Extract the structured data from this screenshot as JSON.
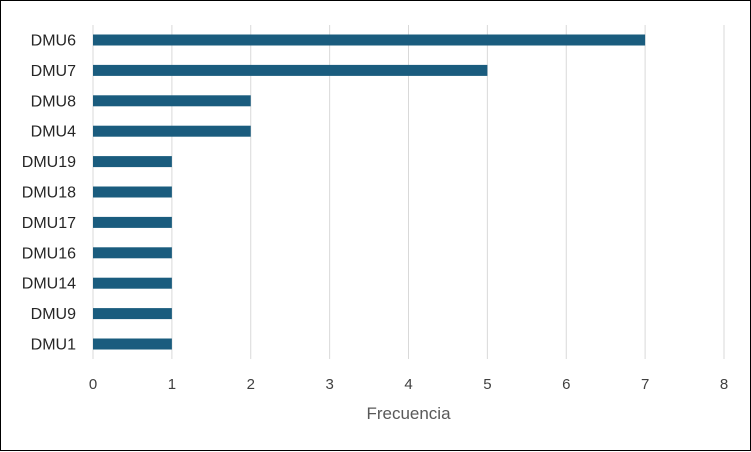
{
  "chart_data": {
    "type": "bar",
    "orientation": "horizontal",
    "categories": [
      "DMU6",
      "DMU7",
      "DMU8",
      "DMU4",
      "DMU19",
      "DMU18",
      "DMU17",
      "DMU16",
      "DMU14",
      "DMU9",
      "DMU1"
    ],
    "values": [
      7,
      5,
      2,
      2,
      1,
      1,
      1,
      1,
      1,
      1,
      1
    ],
    "title": "",
    "xlabel": "Frecuencia",
    "ylabel": "",
    "xlim": [
      0,
      8
    ],
    "xticks": [
      "0",
      "1",
      "2",
      "3",
      "4",
      "5",
      "6",
      "7",
      "8"
    ],
    "grid": "vertical",
    "legend": "none",
    "bar_color": "#1a5c7e",
    "grid_color": "#d9d9d9"
  }
}
